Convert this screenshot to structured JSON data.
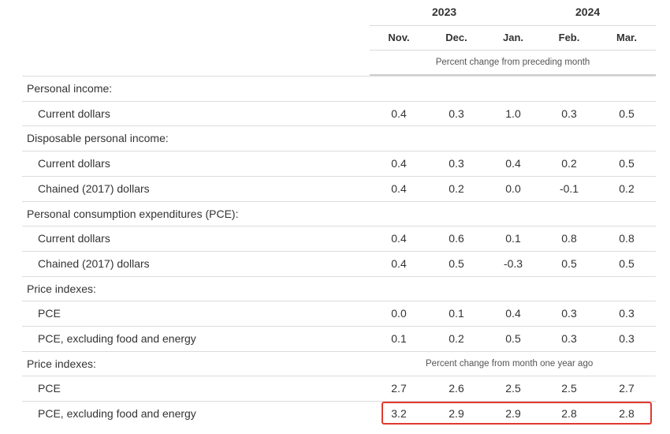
{
  "header": {
    "years": [
      "2023",
      "2024"
    ],
    "months": [
      "Nov.",
      "Dec.",
      "Jan.",
      "Feb.",
      "Mar."
    ],
    "subhead_monthly": "Percent change from preceding month",
    "subhead_yearly": "Percent change from month one year ago"
  },
  "rows": [
    {
      "type": "section",
      "label": "Personal income:",
      "values": []
    },
    {
      "type": "item",
      "label": "Current dollars",
      "values": [
        "0.4",
        "0.3",
        "1.0",
        "0.3",
        "0.5"
      ]
    },
    {
      "type": "section",
      "label": "Disposable personal income:",
      "values": []
    },
    {
      "type": "item",
      "label": "Current dollars",
      "values": [
        "0.4",
        "0.3",
        "0.4",
        "0.2",
        "0.5"
      ]
    },
    {
      "type": "item",
      "label": "Chained (2017) dollars",
      "values": [
        "0.4",
        "0.2",
        "0.0",
        "-0.1",
        "0.2"
      ]
    },
    {
      "type": "section",
      "label": "Personal consumption expenditures (PCE):",
      "values": []
    },
    {
      "type": "item",
      "label": "Current dollars",
      "values": [
        "0.4",
        "0.6",
        "0.1",
        "0.8",
        "0.8"
      ]
    },
    {
      "type": "item",
      "label": "Chained (2017) dollars",
      "values": [
        "0.4",
        "0.5",
        "-0.3",
        "0.5",
        "0.5"
      ]
    },
    {
      "type": "section",
      "label": "Price indexes:",
      "values": []
    },
    {
      "type": "item",
      "label": "PCE",
      "values": [
        "0.0",
        "0.1",
        "0.4",
        "0.3",
        "0.3"
      ]
    },
    {
      "type": "item",
      "label": "PCE, excluding food and energy",
      "values": [
        "0.1",
        "0.2",
        "0.5",
        "0.3",
        "0.3"
      ]
    },
    {
      "type": "section",
      "label": "Price indexes:",
      "values": [],
      "note_key": "subhead_yearly"
    },
    {
      "type": "item",
      "label": "PCE",
      "values": [
        "2.7",
        "2.6",
        "2.5",
        "2.5",
        "2.7"
      ]
    },
    {
      "type": "item",
      "label": "PCE, excluding food and energy",
      "values": [
        "3.2",
        "2.9",
        "2.9",
        "2.8",
        "2.8"
      ],
      "highlighted": true
    }
  ],
  "colors": {
    "highlight_border": "#e03a2f",
    "rule": "#dcdcdc",
    "text": "#333333"
  }
}
